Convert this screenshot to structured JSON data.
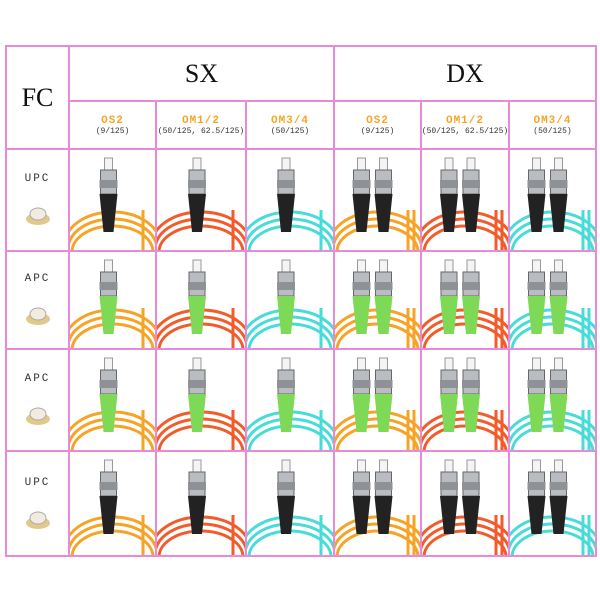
{
  "header": {
    "corner": "FC",
    "groups": [
      "SX",
      "DX"
    ]
  },
  "columns": [
    {
      "name": "OS2",
      "spec": "(9/125)"
    },
    {
      "name": "OM1/2",
      "spec": "(50/125, 62.5/125)"
    },
    {
      "name": "OM3/4",
      "spec": "(50/125)"
    },
    {
      "name": "OS2",
      "spec": "(9/125)"
    },
    {
      "name": "OM1/2",
      "spec": "(50/125, 62.5/125)"
    },
    {
      "name": "OM3/4",
      "spec": "(50/125)"
    }
  ],
  "rows": [
    {
      "label": "UPC"
    },
    {
      "label": "APC"
    },
    {
      "label": "APC"
    },
    {
      "label": "UPC"
    }
  ]
}
